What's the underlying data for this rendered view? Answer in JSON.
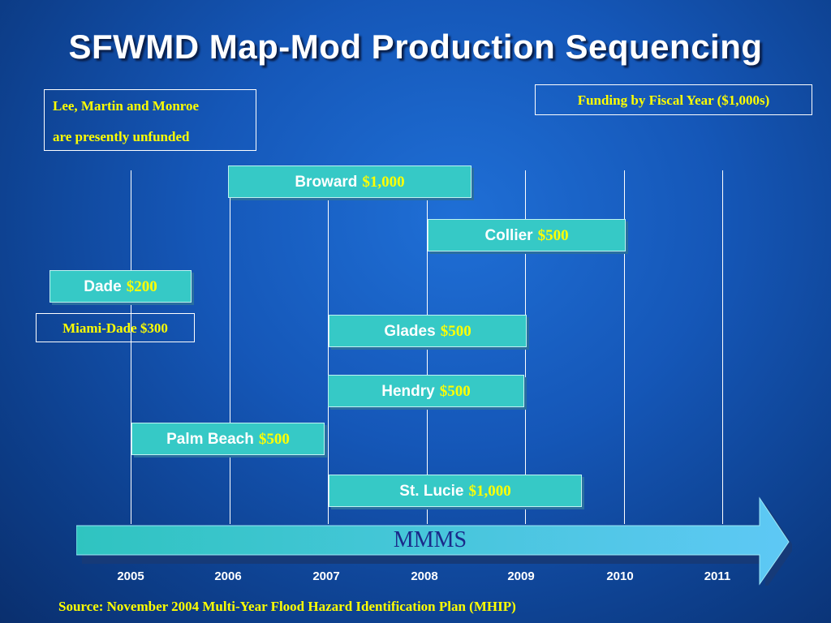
{
  "title": "SFWMD Map-Mod Production Sequencing",
  "note": {
    "line1": "Lee, Martin and Monroe",
    "line2": "are presently unfunded"
  },
  "funding_label": "Funding by Fiscal Year ($1,000s)",
  "miami_dade": "Miami-Dade $300",
  "bars": [
    {
      "name": "Broward",
      "cost": "$1,000",
      "start": 2006,
      "end": 2008.5
    },
    {
      "name": "Collier",
      "cost": "$500",
      "start": 2008,
      "end": 2010
    },
    {
      "name": "Dade",
      "cost": "$200",
      "start": 2004.75,
      "end": 2006.2
    },
    {
      "name": "Glades",
      "cost": "$500",
      "start": 2007,
      "end": 2009
    },
    {
      "name": "Hendry",
      "cost": "$500",
      "start": 2007,
      "end": 2009
    },
    {
      "name": "Palm Beach",
      "cost": "$500",
      "start": 2005,
      "end": 2007
    },
    {
      "name": "St. Lucie",
      "cost": "$1,000",
      "start": 2007,
      "end": 2009.6
    }
  ],
  "mmms_label": "MMMS",
  "years": [
    "2005",
    "2006",
    "2007",
    "2008",
    "2009",
    "2010",
    "2011"
  ],
  "source": "Source: November 2004 Multi-Year Flood Hazard Identification Plan (MHIP)",
  "colors": {
    "bar_fill": "#36c9c6",
    "cost_text": "#ffff00",
    "arrow_start": "#2fc4c0",
    "arrow_end": "#5ec8f5"
  }
}
